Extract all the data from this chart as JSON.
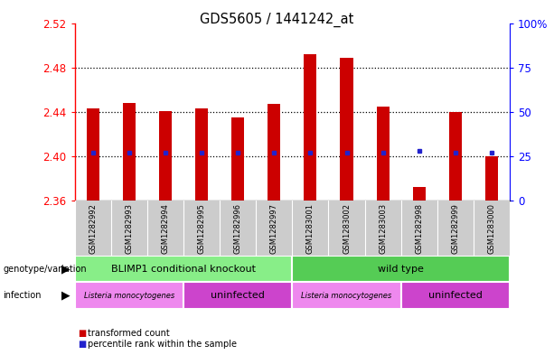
{
  "title": "GDS5605 / 1441242_at",
  "samples": [
    "GSM1282992",
    "GSM1282993",
    "GSM1282994",
    "GSM1282995",
    "GSM1282996",
    "GSM1282997",
    "GSM1283001",
    "GSM1283002",
    "GSM1283003",
    "GSM1282998",
    "GSM1282999",
    "GSM1283000"
  ],
  "transformed_count": [
    2.443,
    2.448,
    2.441,
    2.443,
    2.435,
    2.447,
    2.492,
    2.489,
    2.445,
    2.372,
    2.44,
    2.4
  ],
  "percentile_rank_y": [
    2.403,
    2.403,
    2.403,
    2.403,
    2.403,
    2.403,
    2.403,
    2.403,
    2.403,
    2.405,
    2.403,
    2.403
  ],
  "y_min": 2.36,
  "y_max": 2.52,
  "y_ticks": [
    2.36,
    2.4,
    2.44,
    2.48,
    2.52
  ],
  "y2_ticks": [
    0,
    25,
    50,
    75,
    100
  ],
  "bar_color": "#cc0000",
  "dot_color": "#2222cc",
  "genotype_groups": [
    {
      "label": "BLIMP1 conditional knockout",
      "start": 0,
      "end": 6,
      "color": "#88ee88"
    },
    {
      "label": "wild type",
      "start": 6,
      "end": 12,
      "color": "#55cc55"
    }
  ],
  "infection_groups": [
    {
      "label": "Listeria monocytogenes",
      "start": 0,
      "end": 3,
      "color": "#ee88ee"
    },
    {
      "label": "uninfected",
      "start": 3,
      "end": 6,
      "color": "#cc44cc"
    },
    {
      "label": "Listeria monocytogenes",
      "start": 6,
      "end": 9,
      "color": "#ee88ee"
    },
    {
      "label": "uninfected",
      "start": 9,
      "end": 12,
      "color": "#cc44cc"
    }
  ],
  "xtick_bg": "#cccccc",
  "legend": [
    {
      "color": "#cc0000",
      "label": "transformed count"
    },
    {
      "color": "#2222cc",
      "label": "percentile rank within the sample"
    }
  ]
}
